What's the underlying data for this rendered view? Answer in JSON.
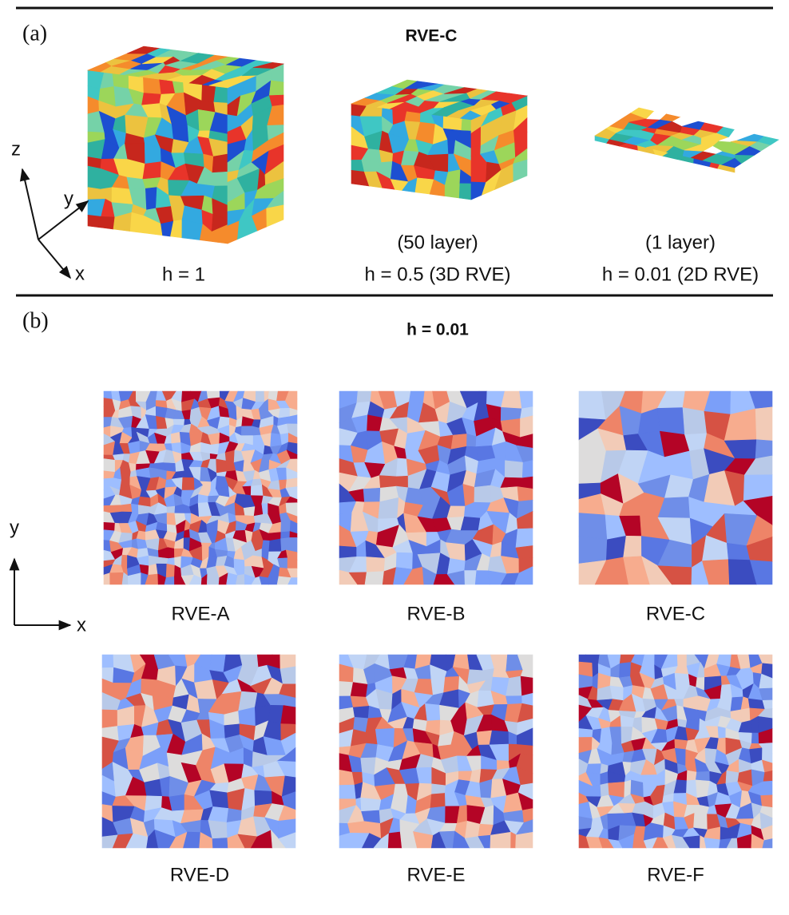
{
  "panel_a": {
    "label": "(a)",
    "title": "RVE-C",
    "axes": {
      "z": "z",
      "y": "y",
      "x": "x"
    },
    "samples": [
      {
        "caption": [
          "h = 1"
        ]
      },
      {
        "caption": [
          "(50 layer)",
          "h = 0.5 (3D RVE)"
        ]
      },
      {
        "caption": [
          "(1 layer)",
          "h = 0.01 (2D RVE)"
        ]
      }
    ]
  },
  "panel_b": {
    "label": "(b)",
    "title": "h = 0.01",
    "axes": {
      "y": "y",
      "x": "x"
    },
    "maps": [
      "RVE-A",
      "RVE-B",
      "RVE-C",
      "RVE-D",
      "RVE-E",
      "RVE-F"
    ]
  }
}
